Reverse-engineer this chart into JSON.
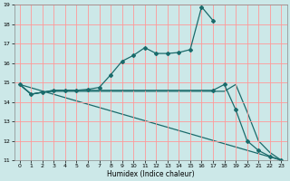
{
  "xlabel": "Humidex (Indice chaleur)",
  "bg_color": "#cce8e8",
  "grid_color": "#ff9999",
  "line_color": "#1a6b6b",
  "xlim": [
    -0.5,
    23.5
  ],
  "ylim": [
    11,
    19
  ],
  "yticks": [
    11,
    12,
    13,
    14,
    15,
    16,
    17,
    18,
    19
  ],
  "xticks": [
    0,
    1,
    2,
    3,
    4,
    5,
    6,
    7,
    8,
    9,
    10,
    11,
    12,
    13,
    14,
    15,
    16,
    17,
    18,
    19,
    20,
    21,
    22,
    23
  ],
  "curve1_x": [
    0,
    1,
    2,
    3,
    4,
    5,
    6,
    7,
    8,
    9,
    10,
    11,
    12,
    13,
    14,
    15,
    16,
    17
  ],
  "curve1_y": [
    14.9,
    14.4,
    14.5,
    14.6,
    14.6,
    14.6,
    14.65,
    14.75,
    15.4,
    16.1,
    16.4,
    16.8,
    16.5,
    16.5,
    16.55,
    16.7,
    18.9,
    18.2
  ],
  "curve2_x": [
    0,
    1,
    2,
    3,
    4,
    5,
    6,
    7,
    8,
    9,
    10,
    11,
    12,
    13,
    14,
    15,
    16,
    17,
    18,
    19,
    20,
    21,
    22,
    23
  ],
  "curve2_y": [
    14.9,
    14.4,
    14.5,
    14.6,
    14.6,
    14.6,
    14.6,
    14.6,
    14.6,
    14.6,
    14.6,
    14.6,
    14.6,
    14.6,
    14.6,
    14.6,
    14.6,
    14.6,
    14.9,
    13.6,
    12.0,
    11.5,
    11.2,
    11.0
  ],
  "curve3_x": [
    0,
    23
  ],
  "curve3_y": [
    14.9,
    11.0
  ],
  "curve4_x": [
    0,
    1,
    2,
    3,
    4,
    5,
    6,
    7,
    8,
    9,
    10,
    11,
    12,
    13,
    14,
    15,
    16,
    17,
    18,
    19,
    20,
    21,
    22,
    23
  ],
  "curve4_y": [
    14.9,
    14.4,
    14.5,
    14.55,
    14.55,
    14.55,
    14.55,
    14.55,
    14.55,
    14.55,
    14.55,
    14.55,
    14.55,
    14.55,
    14.55,
    14.55,
    14.55,
    14.55,
    14.55,
    14.9,
    13.5,
    12.0,
    11.4,
    11.0
  ]
}
